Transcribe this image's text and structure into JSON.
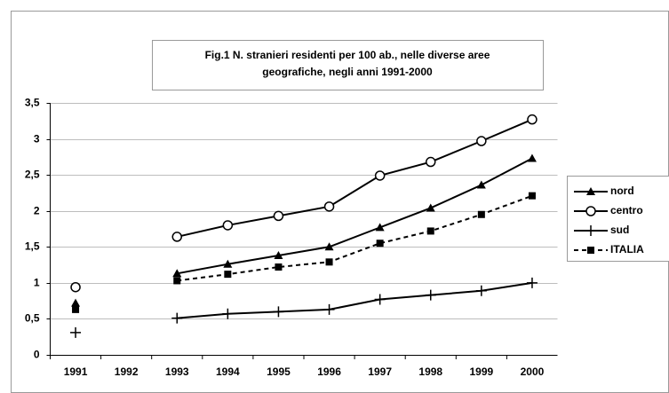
{
  "chart_data": {
    "type": "line",
    "title": "Fig.1 N. stranieri residenti per 100 ab., nelle diverse aree geografiche, negli anni 1991-2000",
    "categories": [
      "1991",
      "1992",
      "1993",
      "1994",
      "1995",
      "1996",
      "1997",
      "1998",
      "1999",
      "2000"
    ],
    "series": [
      {
        "name": "nord",
        "color": "#000000",
        "marker": "triangle",
        "dashed": false,
        "values": [
          0.72,
          null,
          1.13,
          1.26,
          1.38,
          1.5,
          1.77,
          2.04,
          2.36,
          2.73
        ]
      },
      {
        "name": "centro",
        "color": "#000000",
        "marker": "circle",
        "dashed": false,
        "values": [
          0.94,
          null,
          1.64,
          1.8,
          1.93,
          2.06,
          2.49,
          2.68,
          2.97,
          3.27
        ]
      },
      {
        "name": "sud",
        "color": "#000000",
        "marker": "plus",
        "dashed": false,
        "values": [
          0.31,
          null,
          0.51,
          0.57,
          0.6,
          0.63,
          0.77,
          0.83,
          0.89,
          1.0
        ]
      },
      {
        "name": "ITALIA",
        "color": "#000000",
        "marker": "square",
        "dashed": true,
        "values": [
          0.63,
          null,
          1.03,
          1.12,
          1.22,
          1.29,
          1.55,
          1.72,
          1.95,
          2.21
        ]
      }
    ],
    "ylim": [
      0,
      3.5
    ],
    "yticks": [
      0,
      {
        "value": 0.5,
        "label": "0,5"
      },
      1,
      {
        "value": 1.5,
        "label": "1,5"
      },
      2,
      {
        "value": 2.5,
        "label": "2,5"
      },
      3,
      {
        "value": 3.5,
        "label": "3,5"
      }
    ],
    "grid": true,
    "legend": "right"
  }
}
